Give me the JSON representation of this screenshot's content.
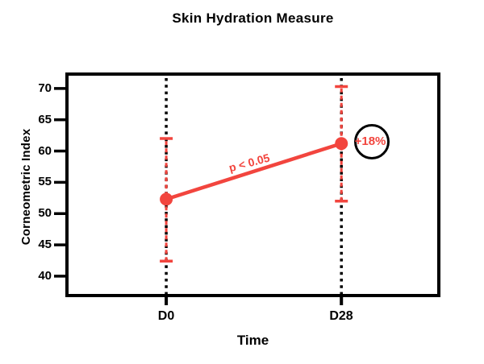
{
  "chart_data": {
    "type": "line",
    "title": "Skin Hydration Measure",
    "xlabel": "Time",
    "ylabel": "Corneometric Index",
    "categories": [
      "D0",
      "D28"
    ],
    "yticks": [
      40,
      45,
      50,
      55,
      60,
      65,
      70
    ],
    "ylim": [
      36.9,
      72.3
    ],
    "grid": false,
    "frame_color": "#000000",
    "guide_lines": {
      "style": "dotted",
      "color": "#000000",
      "at_categories": [
        "D0",
        "D28"
      ]
    },
    "series": [
      {
        "name": "Corneometric Index",
        "values": [
          52.3,
          61.2
        ],
        "error_upper": [
          62.0,
          70.3
        ],
        "error_lower": [
          42.4,
          52.0
        ],
        "color": "#F2453E",
        "marker": "circle",
        "error_bar_style": "dashed"
      }
    ],
    "annotations": [
      {
        "text": "p < 0.05",
        "color": "#F2453E",
        "rotation_deg": -15,
        "position": "above-connecting-line"
      },
      {
        "text": "+18%",
        "color": "#F2453E",
        "circled": true,
        "circle_color": "#000000",
        "position": "right-of-last-point"
      }
    ]
  }
}
